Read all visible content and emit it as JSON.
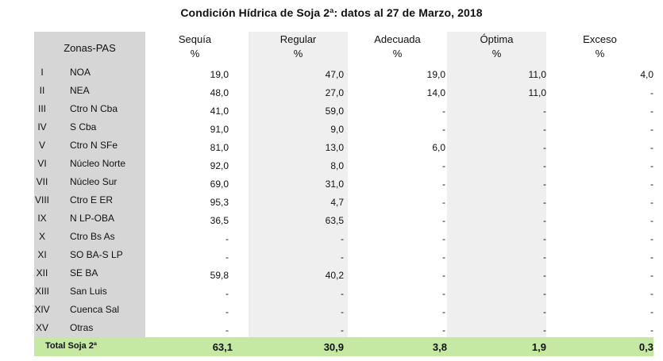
{
  "title": "Condición Hídrica de Soja 2ª: datos al 27 de Marzo, 2018",
  "header": {
    "zones_label": "Zonas-PAS",
    "columns": [
      {
        "name": "Sequía",
        "unit": "%"
      },
      {
        "name": "Regular",
        "unit": "%"
      },
      {
        "name": "Adecuada",
        "unit": "%"
      },
      {
        "name": "Óptima",
        "unit": "%"
      },
      {
        "name": "Exceso",
        "unit": "%"
      }
    ]
  },
  "rows": [
    {
      "roman": "I",
      "zone": "NOA",
      "values": [
        "19,0",
        "47,0",
        "19,0",
        "11,0",
        "4,0"
      ]
    },
    {
      "roman": "II",
      "zone": "NEA",
      "values": [
        "48,0",
        "27,0",
        "14,0",
        "11,0",
        "-"
      ]
    },
    {
      "roman": "III",
      "zone": "Ctro N Cba",
      "values": [
        "41,0",
        "59,0",
        "-",
        "-",
        "-"
      ]
    },
    {
      "roman": "IV",
      "zone": "S Cba",
      "values": [
        "91,0",
        "9,0",
        "-",
        "-",
        "-"
      ]
    },
    {
      "roman": "V",
      "zone": "Ctro N SFe",
      "values": [
        "81,0",
        "13,0",
        "6,0",
        "-",
        "-"
      ]
    },
    {
      "roman": "VI",
      "zone": "Núcleo Norte",
      "values": [
        "92,0",
        "8,0",
        "-",
        "-",
        "-"
      ]
    },
    {
      "roman": "VII",
      "zone": "Núcleo Sur",
      "values": [
        "69,0",
        "31,0",
        "-",
        "-",
        "-"
      ]
    },
    {
      "roman": "VIII",
      "zone": "Ctro E ER",
      "values": [
        "95,3",
        "4,7",
        "-",
        "-",
        "-"
      ]
    },
    {
      "roman": "IX",
      "zone": "N LP-OBA",
      "values": [
        "36,5",
        "63,5",
        "-",
        "-",
        "-"
      ]
    },
    {
      "roman": "X",
      "zone": "Ctro Bs As",
      "values": [
        "-",
        "-",
        "-",
        "-",
        "-"
      ]
    },
    {
      "roman": "XI",
      "zone": "SO BA-S LP",
      "values": [
        "-",
        "-",
        "-",
        "-",
        "-"
      ]
    },
    {
      "roman": "XII",
      "zone": "SE BA",
      "values": [
        "59,8",
        "40,2",
        "-",
        "-",
        "-"
      ]
    },
    {
      "roman": "XIII",
      "zone": "San Luis",
      "values": [
        "-",
        "-",
        "-",
        "-",
        "-"
      ]
    },
    {
      "roman": "XIV",
      "zone": "Cuenca Sal",
      "values": [
        "-",
        "-",
        "-",
        "-",
        "-"
      ]
    },
    {
      "roman": "XV",
      "zone": "Otras",
      "values": [
        "-",
        "-",
        "-",
        "-",
        "-"
      ]
    }
  ],
  "total": {
    "label": "Total Soja 2ª",
    "values": [
      "63,1",
      "30,9",
      "3,8",
      "1,9",
      "0,3"
    ]
  },
  "colors": {
    "zone_band": "#d6d6d6",
    "alt_band": "#efefef",
    "total_band": "#c5e9a2"
  }
}
